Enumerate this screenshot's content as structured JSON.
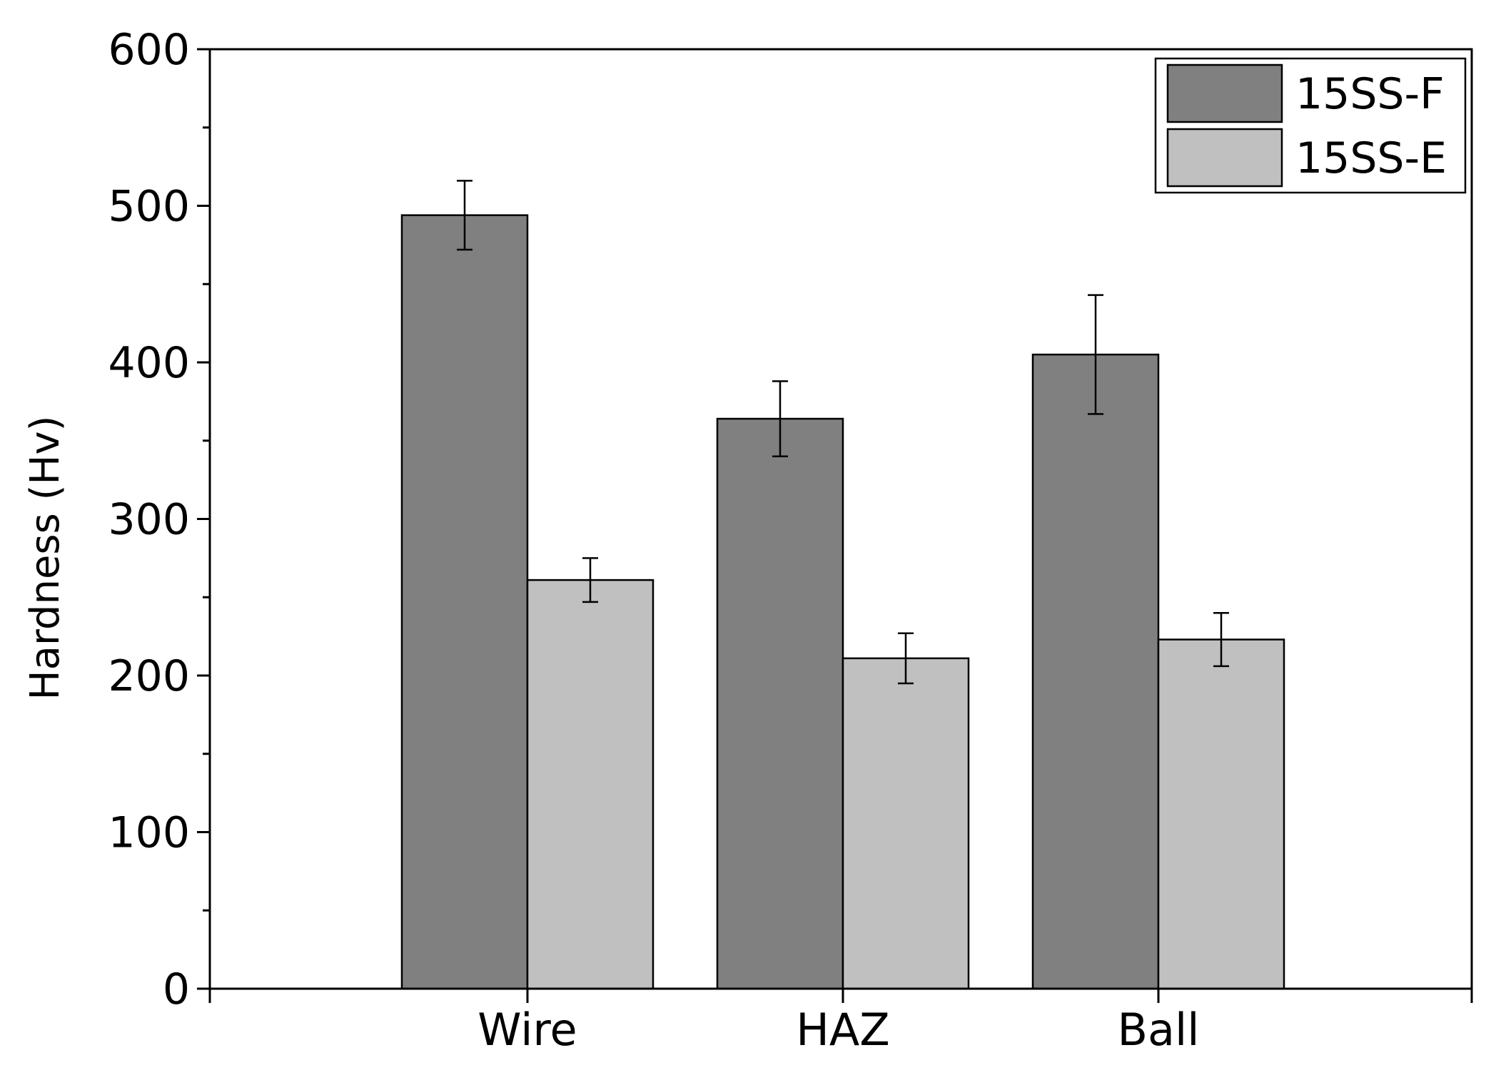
{
  "chart_data": {
    "type": "bar",
    "title": "",
    "xlabel": "",
    "ylabel": "Hardness (Hv)",
    "categories": [
      "Wire",
      "HAZ",
      "Ball"
    ],
    "series": [
      {
        "name": "15SS-F",
        "values": [
          494,
          364,
          405
        ],
        "errors": [
          22,
          24,
          38
        ],
        "color": "#808080"
      },
      {
        "name": "15SS-E",
        "values": [
          261,
          211,
          223
        ],
        "errors": [
          14,
          16,
          17
        ],
        "color": "#c0c0c0"
      }
    ],
    "ylim": [
      0,
      600
    ],
    "yticks": [
      0,
      100,
      200,
      300,
      400,
      500,
      600
    ],
    "grid": false,
    "legend_position": "top-right",
    "colors": {
      "frame": "#000000",
      "background": "#ffffff"
    }
  }
}
